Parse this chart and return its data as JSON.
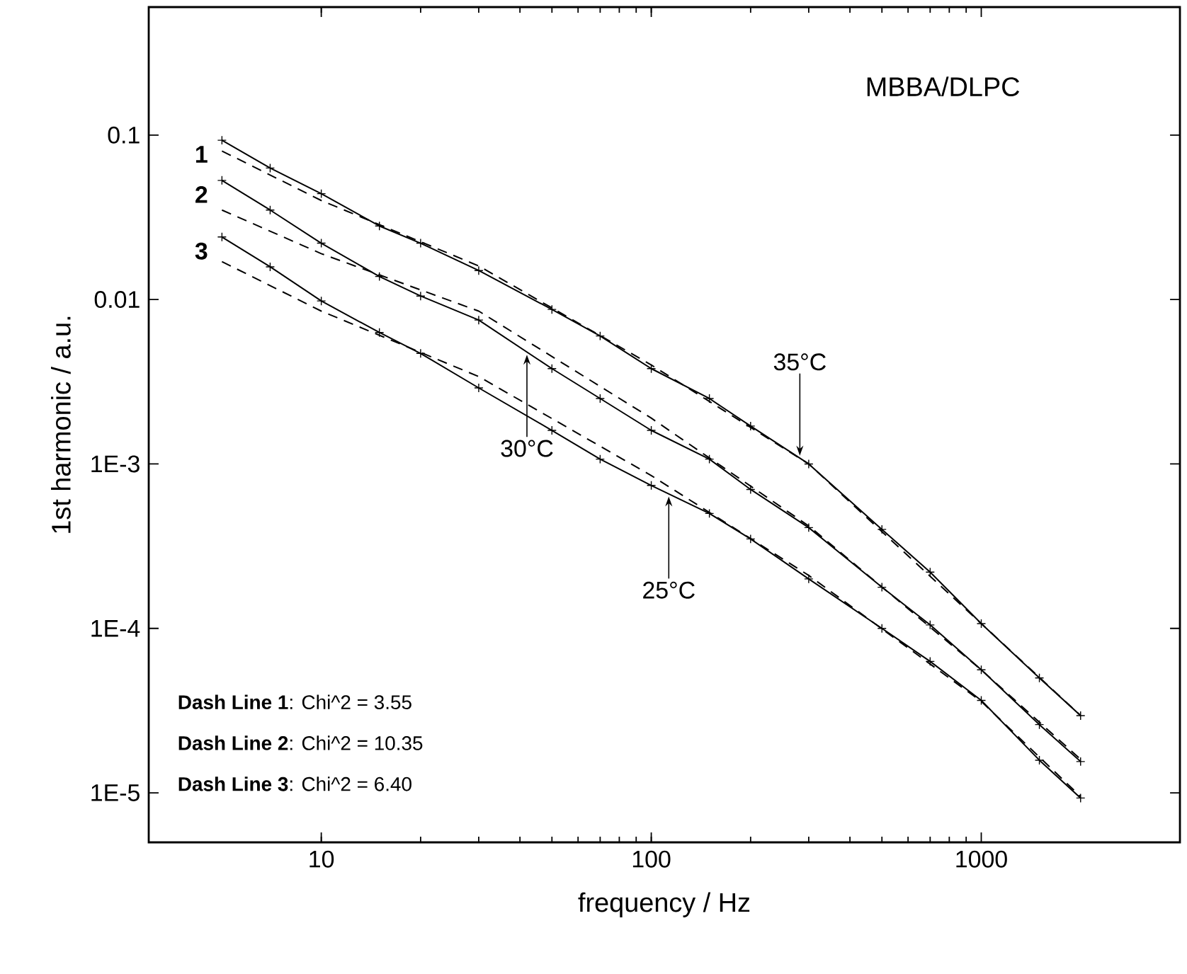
{
  "chart_data": {
    "type": "line",
    "xlabel": "frequency / Hz",
    "ylabel": "1st harmonic / a.u.",
    "log": "xy",
    "grid": false,
    "legend": false,
    "xlim": [
      3,
      4000
    ],
    "ylim": [
      5e-06,
      0.6
    ],
    "xticks": [
      10,
      100,
      1000
    ],
    "yticks": [
      0.1,
      0.01,
      {
        "value": 0.001,
        "label": "1E-3"
      },
      {
        "value": 0.0001,
        "label": "1E-4"
      },
      {
        "value": 1e-05,
        "label": "1E-5"
      }
    ],
    "x": [
      5,
      7,
      10,
      15,
      20,
      30,
      50,
      70,
      100,
      150,
      200,
      300,
      500,
      700,
      1000,
      1500,
      2000
    ],
    "series": [
      {
        "name": "1",
        "color": "#000000",
        "marker": "cross",
        "line_style": "solid",
        "values": [
          0.093,
          0.063,
          0.044,
          0.028,
          0.022,
          0.015,
          0.0087,
          0.006,
          0.0038,
          0.0025,
          0.0017,
          0.001,
          0.0004,
          0.00022,
          0.000107,
          5e-05,
          2.95e-05
        ]
      },
      {
        "name": "2",
        "color": "#000000",
        "marker": "cross",
        "line_style": "solid",
        "values": [
          0.053,
          0.035,
          0.022,
          0.0138,
          0.0105,
          0.0075,
          0.0038,
          0.0025,
          0.0016,
          0.00107,
          0.0007,
          0.00041,
          0.000178,
          0.000105,
          5.6e-05,
          2.6e-05,
          1.55e-05
        ]
      },
      {
        "name": "3",
        "color": "#000000",
        "marker": "cross",
        "line_style": "solid",
        "values": [
          0.024,
          0.0158,
          0.0098,
          0.0063,
          0.0047,
          0.0029,
          0.0016,
          0.00107,
          0.00074,
          0.0005,
          0.00035,
          0.0002,
          0.0001,
          6.3e-05,
          3.65e-05,
          1.58e-05,
          9.3e-06
        ]
      },
      {
        "type": "line",
        "color": "#000000",
        "marker": "none",
        "line_style": "dashed",
        "x": [
          5,
          10,
          30,
          100,
          300,
          1000,
          2000
        ],
        "values": [
          0.08,
          0.04,
          0.016,
          0.004,
          0.001,
          0.000107,
          2.95e-05
        ]
      },
      {
        "type": "line",
        "color": "#000000",
        "marker": "none",
        "line_style": "dashed",
        "x": [
          5,
          10,
          30,
          100,
          300,
          1000,
          2000
        ],
        "values": [
          0.035,
          0.019,
          0.0085,
          0.0019,
          0.00042,
          5.6e-05,
          1.6e-05
        ]
      },
      {
        "type": "line",
        "color": "#000000",
        "marker": "none",
        "line_style": "dashed",
        "x": [
          5,
          10,
          30,
          100,
          300,
          1000,
          2000
        ],
        "values": [
          0.017,
          0.0085,
          0.0034,
          0.00085,
          0.00021,
          3.6e-05,
          9.5e-06
        ]
      }
    ],
    "annotations": [
      "MBBA/DLPC",
      {
        "text": "30°C",
        "x": 42,
        "y": 0.0048
      },
      {
        "text": "35°C",
        "x": 282,
        "y": 0.00108
      },
      {
        "text": "25°C",
        "x": 113,
        "y": 0.00066
      },
      "**Dash Line 1**: Chi^2 = 3.55",
      "**Dash Line 2**: Chi^2 = 10.35",
      "**Dash Line 3**: Chi^2 = 6.40"
    ]
  }
}
